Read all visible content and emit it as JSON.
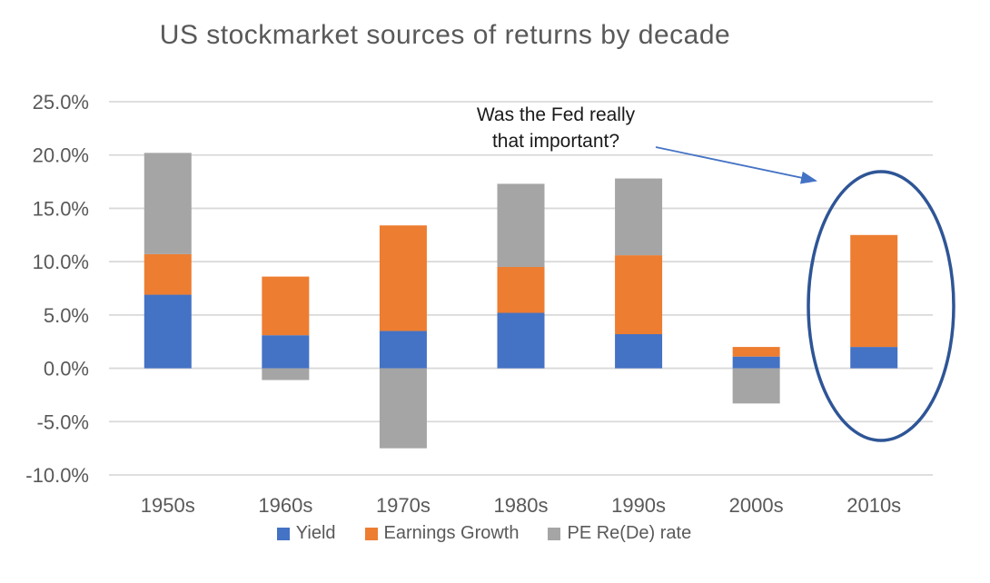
{
  "title": "US stockmarket sources of returns by decade",
  "annotation": {
    "line1": "Was the Fed really",
    "line2": "that important?"
  },
  "chart_data": {
    "type": "bar",
    "stacked": true,
    "title": "US stockmarket sources of returns by decade",
    "categories": [
      "1950s",
      "1960s",
      "1970s",
      "1980s",
      "1990s",
      "2000s",
      "2010s"
    ],
    "series": [
      {
        "name": "Yield",
        "color": "#4472C4",
        "values": [
          6.9,
          3.1,
          3.5,
          5.2,
          3.2,
          1.1,
          2.0
        ]
      },
      {
        "name": "Earnings Growth",
        "color": "#ED7D31",
        "values": [
          3.8,
          5.5,
          9.9,
          4.3,
          7.4,
          0.9,
          10.5
        ]
      },
      {
        "name": "PE Re(De) rate",
        "color": "#A5A5A5",
        "values": [
          9.5,
          -1.1,
          -7.5,
          7.8,
          7.2,
          -3.3,
          0.0
        ]
      }
    ],
    "unit": "percent",
    "xlabel": "",
    "ylabel": "",
    "ylim": [
      -10,
      25
    ],
    "y_ticks": [
      {
        "value": 25,
        "label": "25.0%"
      },
      {
        "value": 20,
        "label": "20.0%"
      },
      {
        "value": 15,
        "label": "15.0%"
      },
      {
        "value": 10,
        "label": "10.0%"
      },
      {
        "value": 5,
        "label": "5.0%"
      },
      {
        "value": 0,
        "label": "0.0%"
      },
      {
        "value": -5,
        "label": "-5.0%"
      },
      {
        "value": -10,
        "label": "-10.0%"
      }
    ],
    "grid": true,
    "legend_position": "bottom",
    "annotation_target": "2010s"
  },
  "colors": {
    "gridline": "#D9D9D9",
    "axis_text": "#595959",
    "title_text": "#595959",
    "annotation_text": "#1A1A1A",
    "arrow": "#4472C4",
    "ellipse": "#2E5596",
    "background": "#FFFFFF"
  }
}
